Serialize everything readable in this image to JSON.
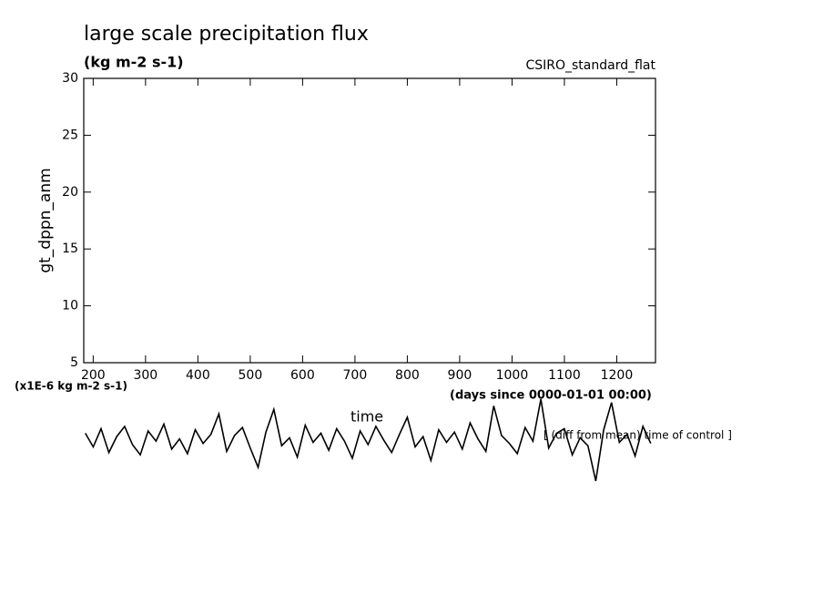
{
  "chart_data": {
    "type": "line",
    "title": "large scale precipitation flux",
    "subtitle": "(kg m-2 s-1)",
    "source_label": "CSIRO_standard_flat",
    "ylabel": "gt_dppn_anm",
    "yunits": "(x1E-6 kg m-2 s-1)",
    "xlabel": "time",
    "xunits": "(days since 0000-01-01 00:00)",
    "series_label": "[ (diff from mean) time of control ]",
    "xlim": [
      182,
      1274
    ],
    "ylim": [
      5,
      30
    ],
    "xticks": [
      200,
      300,
      400,
      500,
      600,
      700,
      800,
      900,
      1000,
      1100,
      1200
    ],
    "yticks": [
      5,
      10,
      15,
      20,
      25,
      30
    ],
    "x": [
      185,
      200,
      215,
      230,
      245,
      260,
      275,
      290,
      305,
      320,
      335,
      350,
      365,
      380,
      395,
      410,
      425,
      440,
      455,
      470,
      485,
      500,
      515,
      530,
      545,
      560,
      575,
      590,
      605,
      620,
      635,
      650,
      665,
      680,
      695,
      710,
      725,
      740,
      755,
      770,
      785,
      800,
      815,
      830,
      845,
      860,
      875,
      890,
      905,
      920,
      935,
      950,
      965,
      980,
      995,
      1010,
      1025,
      1040,
      1055,
      1070,
      1085,
      1100,
      1115,
      1130,
      1145,
      1160,
      1175,
      1190,
      1205,
      1220,
      1235,
      1250,
      1265
    ],
    "series": [
      {
        "color": "#000000",
        "values": [
          -1.2,
          -2.4,
          -0.8,
          -2.9,
          -1.5,
          -0.6,
          -2.2,
          -3.1,
          -1.0,
          -1.9,
          -0.4,
          -2.6,
          -1.7,
          -3.0,
          -0.9,
          -2.1,
          -1.3,
          0.5,
          -2.8,
          -1.4,
          -0.7,
          -2.5,
          -4.2,
          -1.1,
          0.9,
          -2.3,
          -1.6,
          -3.3,
          -0.5,
          -2.0,
          -1.2,
          -2.7,
          -0.8,
          -1.9,
          -3.4,
          -1.0,
          -2.2,
          -0.6,
          -1.8,
          -2.9,
          -1.3,
          0.2,
          -2.4,
          -1.5,
          -3.6,
          -0.9,
          -2.0,
          -1.1,
          -2.6,
          -0.3,
          -1.7,
          -2.8,
          1.2,
          -1.4,
          -2.1,
          -3.0,
          -0.7,
          -1.9,
          1.8,
          -2.5,
          -1.2,
          -0.8,
          -3.1,
          -1.6,
          -2.3,
          -5.4,
          -0.9,
          1.5,
          -2.0,
          -1.3,
          -3.2,
          -0.6,
          -2.1
        ]
      }
    ]
  }
}
